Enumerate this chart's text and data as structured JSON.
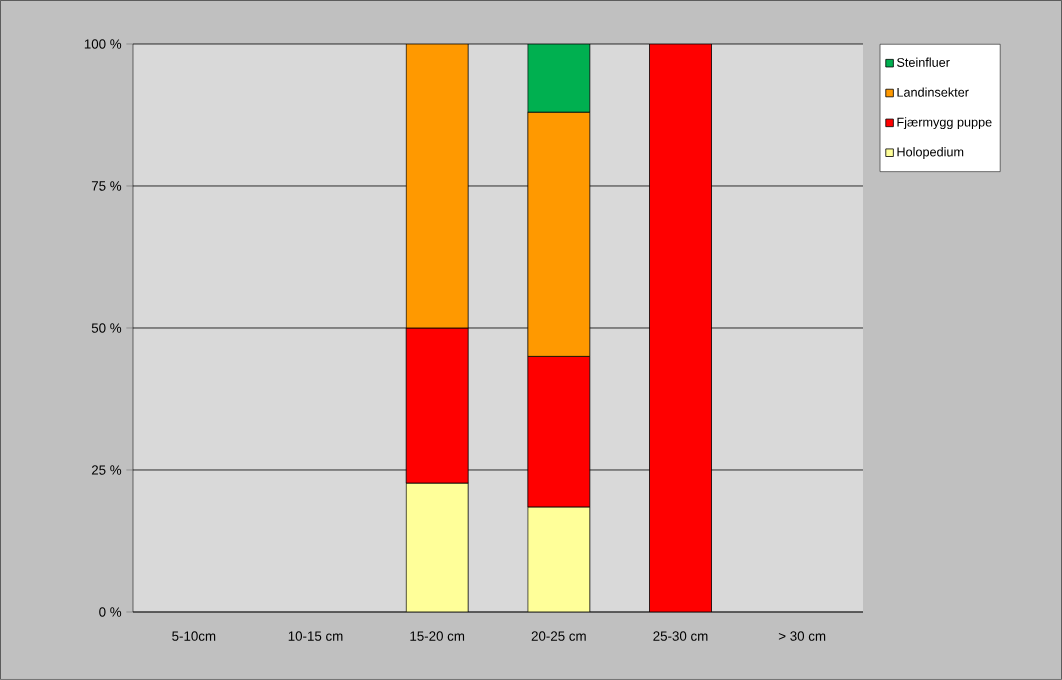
{
  "chart_data": {
    "type": "bar",
    "stacked": true,
    "categories": [
      "5-10cm",
      "10-15 cm",
      "15-20 cm",
      "20-25 cm",
      "25-30 cm",
      "> 30 cm"
    ],
    "series": [
      {
        "name": "Holopedium",
        "color": "#ffff99",
        "values": [
          null,
          null,
          22.7,
          18.5,
          null,
          null
        ]
      },
      {
        "name": "Fjærmygg puppe",
        "color": "#ff0000",
        "values": [
          null,
          null,
          27.3,
          26.5,
          100,
          null
        ]
      },
      {
        "name": "Landinsekter",
        "color": "#ff9900",
        "values": [
          null,
          null,
          50,
          43,
          null,
          null
        ]
      },
      {
        "name": "Steinfluer",
        "color": "#00b050",
        "values": [
          null,
          null,
          null,
          12,
          null,
          null
        ]
      }
    ],
    "ylim": [
      0,
      100
    ],
    "yticks": [
      {
        "value": 0,
        "label": "0 %"
      },
      {
        "value": 25,
        "label": "25 %"
      },
      {
        "value": 50,
        "label": "50 %"
      },
      {
        "value": 75,
        "label": "75 %"
      },
      {
        "value": 100,
        "label": "100 %"
      }
    ],
    "grid": "y",
    "legend": "right"
  }
}
